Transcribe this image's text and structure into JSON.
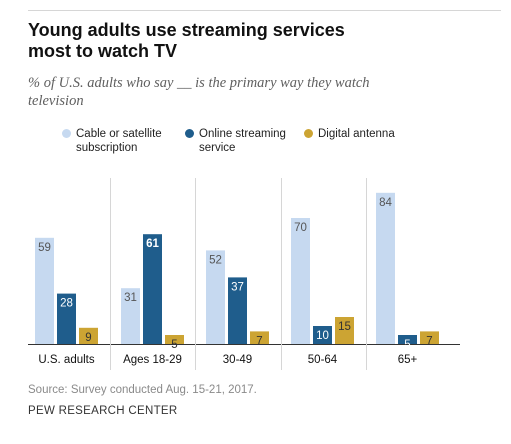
{
  "header": {
    "title": "Young adults use streaming services most to watch TV",
    "subtitle": "% of U.S. adults who say __ is the primary way they watch television"
  },
  "legend": [
    {
      "label": "Cable or satellite subscription",
      "color": "#c6d9f0"
    },
    {
      "label": "Online streaming service",
      "color": "#1f5d8c"
    },
    {
      "label": "Digital antenna",
      "color": "#cca433"
    }
  ],
  "chart_data": {
    "type": "bar",
    "categories": [
      "U.S. adults",
      "Ages 18-29",
      "30-49",
      "50-64",
      "65+"
    ],
    "series": [
      {
        "name": "Cable or satellite subscription",
        "values": [
          59,
          31,
          52,
          70,
          84
        ],
        "color": "#c6d9f0",
        "label_color": "#555555"
      },
      {
        "name": "Online streaming service",
        "values": [
          28,
          61,
          37,
          10,
          5
        ],
        "color": "#1f5d8c",
        "label_color": "#ffffff"
      },
      {
        "name": "Digital antenna",
        "values": [
          9,
          5,
          7,
          15,
          7
        ],
        "color": "#cca433",
        "label_color": "#333333"
      }
    ],
    "highlight": {
      "category_index": 1,
      "series_index": 1
    },
    "ylim": [
      0,
      100
    ],
    "grid": false,
    "legend_position": "top"
  },
  "footer": {
    "source": "Source: Survey conducted Aug. 15-21, 2017.",
    "brand": "PEW RESEARCH CENTER"
  }
}
